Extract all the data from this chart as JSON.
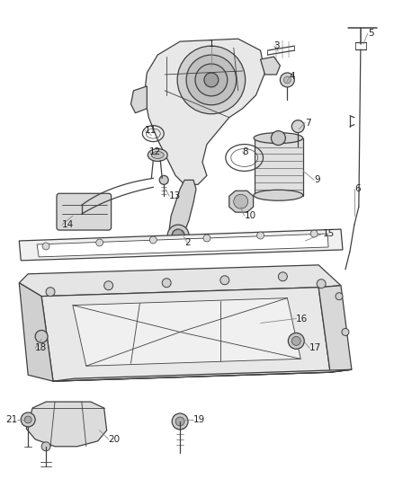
{
  "bg_color": "#ffffff",
  "line_color": "#404040",
  "label_color": "#222222",
  "fig_width": 4.38,
  "fig_height": 5.33,
  "dpi": 100
}
